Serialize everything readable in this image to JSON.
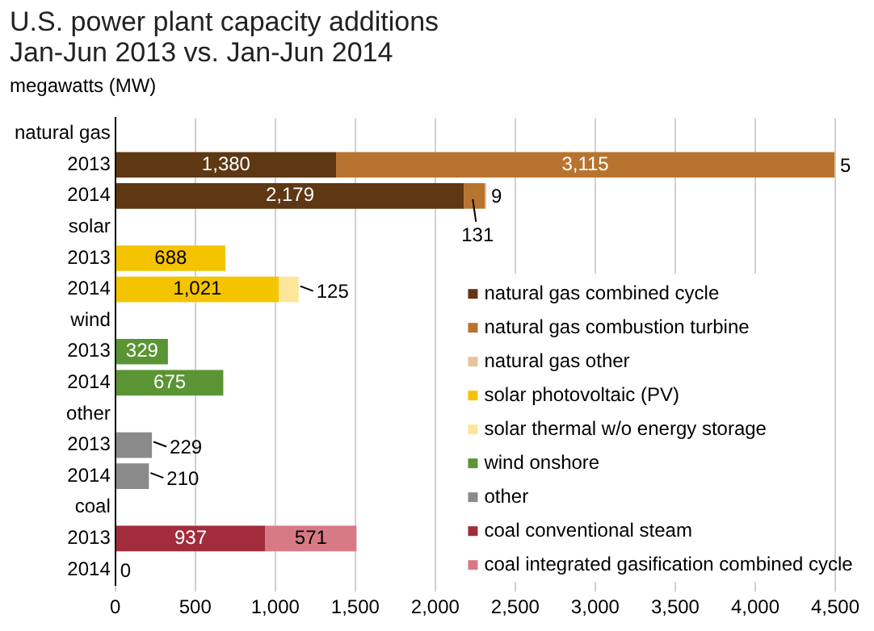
{
  "chart_data": {
    "type": "bar",
    "orientation": "horizontal",
    "stacked": true,
    "title": "U.S. power plant capacity additions\nJan-Jun 2013 vs. Jan-Jun 2014",
    "subtitle": "megawatts (MW)",
    "categories": [
      "natural gas",
      "2013",
      "2014",
      "solar",
      "2013",
      "2014",
      "wind",
      "2013",
      "2014",
      "other",
      "2013",
      "2014",
      "coal",
      "2013",
      "2014"
    ],
    "series": [
      {
        "name": "natural gas combined cycle",
        "color": "#5e3713",
        "values": [
          null,
          1380,
          2179,
          null,
          null,
          null,
          null,
          null,
          null,
          null,
          null,
          null,
          null,
          null,
          null
        ],
        "value_labels": [
          null,
          "1,380",
          "2,179",
          null,
          null,
          null,
          null,
          null,
          null,
          null,
          null,
          null,
          null,
          null,
          null
        ]
      },
      {
        "name": "natural gas combustion turbine",
        "color": "#b8732e",
        "values": [
          null,
          3115,
          131,
          null,
          null,
          null,
          null,
          null,
          null,
          null,
          null,
          null,
          null,
          null,
          null
        ],
        "value_labels": [
          null,
          "3,115",
          "131",
          null,
          null,
          null,
          null,
          null,
          null,
          null,
          null,
          null,
          null,
          null,
          null
        ]
      },
      {
        "name": "natural gas other",
        "color": "#e6c39b",
        "values": [
          null,
          5,
          9,
          null,
          null,
          null,
          null,
          null,
          null,
          null,
          null,
          null,
          null,
          null,
          null
        ],
        "value_labels": [
          null,
          "5",
          "9",
          null,
          null,
          null,
          null,
          null,
          null,
          null,
          null,
          null,
          null,
          null,
          null
        ]
      },
      {
        "name": "solar photovoltaic (PV)",
        "color": "#f5c400",
        "values": [
          null,
          null,
          null,
          null,
          688,
          1021,
          null,
          null,
          null,
          null,
          null,
          null,
          null,
          null,
          null
        ],
        "value_labels": [
          null,
          null,
          null,
          null,
          "688",
          "1,021",
          null,
          null,
          null,
          null,
          null,
          null,
          null,
          null,
          null
        ]
      },
      {
        "name": "solar thermal w/o energy storage",
        "color": "#fde59a",
        "values": [
          null,
          null,
          null,
          null,
          null,
          125,
          null,
          null,
          null,
          null,
          null,
          null,
          null,
          null,
          null
        ],
        "value_labels": [
          null,
          null,
          null,
          null,
          null,
          "125",
          null,
          null,
          null,
          null,
          null,
          null,
          null,
          null,
          null
        ]
      },
      {
        "name": "wind onshore",
        "color": "#5a9434",
        "values": [
          null,
          null,
          null,
          null,
          null,
          null,
          null,
          329,
          675,
          null,
          null,
          null,
          null,
          null,
          null
        ],
        "value_labels": [
          null,
          null,
          null,
          null,
          null,
          null,
          null,
          "329",
          "675",
          null,
          null,
          null,
          null,
          null,
          null
        ]
      },
      {
        "name": "other",
        "color": "#8a8a8a",
        "values": [
          null,
          null,
          null,
          null,
          null,
          null,
          null,
          null,
          null,
          null,
          229,
          210,
          null,
          null,
          null
        ],
        "value_labels": [
          null,
          null,
          null,
          null,
          null,
          null,
          null,
          null,
          null,
          null,
          "229",
          "210",
          null,
          null,
          null
        ]
      },
      {
        "name": "coal conventional steam",
        "color": "#a02c3c",
        "values": [
          null,
          null,
          null,
          null,
          null,
          null,
          null,
          null,
          null,
          null,
          null,
          null,
          null,
          937,
          0
        ],
        "value_labels": [
          null,
          null,
          null,
          null,
          null,
          null,
          null,
          null,
          null,
          null,
          null,
          null,
          null,
          "937",
          "0"
        ]
      },
      {
        "name": "coal integrated gasification combined cycle",
        "color": "#d87a85",
        "values": [
          null,
          null,
          null,
          null,
          null,
          null,
          null,
          null,
          null,
          null,
          null,
          null,
          null,
          571,
          null
        ],
        "value_labels": [
          null,
          null,
          null,
          null,
          null,
          null,
          null,
          null,
          null,
          null,
          null,
          null,
          null,
          "571",
          null
        ]
      }
    ],
    "xlim": [
      0,
      4500
    ],
    "xticks": [
      0,
      500,
      {
        "value": 1000,
        "label": "1,000"
      },
      {
        "value": 1500,
        "label": "1,500"
      },
      {
        "value": 2000,
        "label": "2,000"
      },
      {
        "value": 2500,
        "label": "2,500"
      },
      {
        "value": 3000,
        "label": "3,000"
      },
      {
        "value": 3500,
        "label": "3,500"
      },
      {
        "value": 4000,
        "label": "4,000"
      },
      {
        "value": 4500,
        "label": "4,500"
      }
    ],
    "grid": "x",
    "legend": "bottom right"
  }
}
